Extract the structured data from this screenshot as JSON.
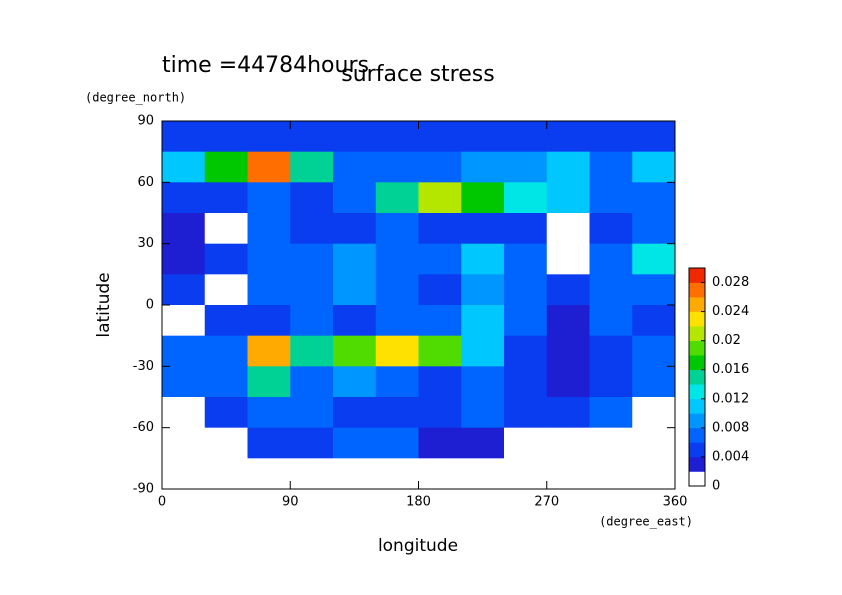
{
  "chart_data": {
    "type": "contour",
    "title": "surface stress",
    "annotation": "time =44784hours",
    "xlabel": "longitude",
    "ylabel": "latitude",
    "xunit": "(degree_east)",
    "yunit": "(degree_north)",
    "xlim": [
      0,
      360
    ],
    "ylim": [
      -90,
      90
    ],
    "xticks": [
      0,
      90,
      180,
      270,
      360
    ],
    "yticks": [
      -90,
      -60,
      -30,
      0,
      30,
      60,
      90
    ],
    "x_edges": [
      0,
      30,
      60,
      90,
      120,
      150,
      180,
      210,
      240,
      270,
      300,
      330,
      360
    ],
    "y_edges": [
      90,
      75,
      60,
      45,
      30,
      15,
      0,
      -15,
      -30,
      -45,
      -60,
      -75,
      -90
    ],
    "z": [
      [
        0.005,
        0.005,
        0.005,
        0.005,
        0.005,
        0.005,
        0.005,
        0.005,
        0.005,
        0.005,
        0.005,
        0.005
      ],
      [
        0.01,
        0.016,
        0.026,
        0.014,
        0.006,
        0.006,
        0.006,
        0.008,
        0.008,
        0.01,
        0.006,
        0.01
      ],
      [
        0.004,
        0.004,
        0.006,
        0.004,
        0.006,
        0.014,
        0.02,
        0.016,
        0.012,
        0.01,
        0.006,
        0.006
      ],
      [
        0.002,
        0.001,
        0.006,
        0.004,
        0.004,
        0.006,
        0.005,
        0.005,
        0.004,
        0.001,
        0.004,
        0.006
      ],
      [
        0.003,
        0.004,
        0.006,
        0.006,
        0.008,
        0.006,
        0.006,
        0.01,
        0.006,
        0.001,
        0.006,
        0.012
      ],
      [
        0.004,
        0.001,
        0.006,
        0.006,
        0.008,
        0.006,
        0.004,
        0.008,
        0.006,
        0.004,
        0.006,
        0.006
      ],
      [
        0.001,
        0.004,
        0.004,
        0.006,
        0.004,
        0.006,
        0.006,
        0.01,
        0.006,
        0.002,
        0.006,
        0.004
      ],
      [
        0.006,
        0.006,
        0.024,
        0.014,
        0.018,
        0.022,
        0.018,
        0.01,
        0.004,
        0.002,
        0.004,
        0.006
      ],
      [
        0.006,
        0.006,
        0.014,
        0.006,
        0.008,
        0.006,
        0.004,
        0.006,
        0.004,
        0.003,
        0.004,
        0.006
      ],
      [
        0.001,
        0.004,
        0.006,
        0.006,
        0.004,
        0.004,
        0.004,
        0.006,
        0.004,
        0.004,
        0.006,
        0.001
      ],
      [
        0.001,
        0.001,
        0.004,
        0.004,
        0.006,
        0.006,
        0.003,
        0.003,
        0.001,
        0.001,
        0.001,
        0.001
      ],
      [
        0.001,
        0.001,
        0.001,
        0.001,
        0.001,
        0.001,
        0.001,
        0.001,
        0.001,
        0.001,
        0.001,
        0.001
      ]
    ],
    "colorbar": {
      "lim": [
        0,
        0.03
      ],
      "levels": [
        0,
        0.002,
        0.004,
        0.006,
        0.008,
        0.01,
        0.012,
        0.014,
        0.016,
        0.018,
        0.02,
        0.022,
        0.024,
        0.026,
        0.028,
        0.03
      ],
      "colors": [
        "#ffffff",
        "#1e1ed2",
        "#0a3cf0",
        "#0064ff",
        "#0096ff",
        "#00c8ff",
        "#00e6e6",
        "#00d296",
        "#00c800",
        "#50dc00",
        "#b4e600",
        "#ffe100",
        "#ffaa00",
        "#ff6e00",
        "#f02800"
      ],
      "ticks": [
        0,
        0.004,
        0.008,
        0.012,
        0.016,
        0.02,
        0.024,
        0.028
      ]
    }
  }
}
